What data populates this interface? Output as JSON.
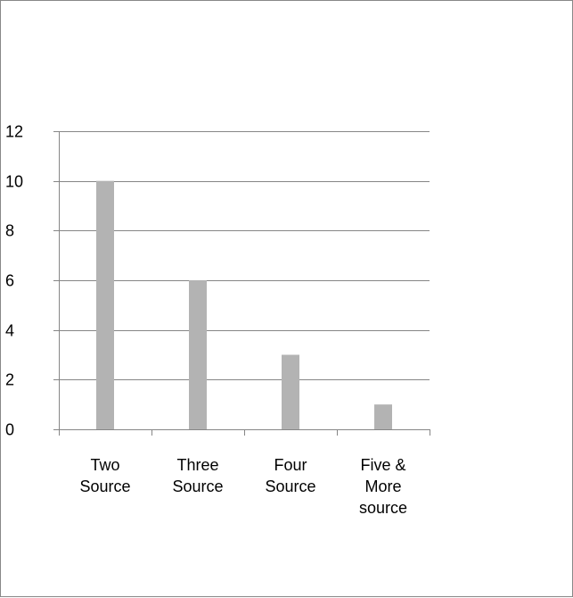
{
  "chart_data": {
    "type": "bar",
    "categories": [
      [
        "Two",
        "Source"
      ],
      [
        "Three",
        "Source"
      ],
      [
        "Four",
        "Source"
      ],
      [
        "Five &",
        "More",
        "source"
      ]
    ],
    "values": [
      10,
      6,
      3,
      1
    ],
    "ylim": [
      0,
      12
    ],
    "yticks": [
      "0",
      "2",
      "4",
      "6",
      "8",
      "10",
      "12"
    ],
    "grid": true,
    "legend": "none",
    "bar_color": "#b3b3b3",
    "grid_color": "#868686",
    "title": "",
    "xlabel": "",
    "ylabel": ""
  }
}
